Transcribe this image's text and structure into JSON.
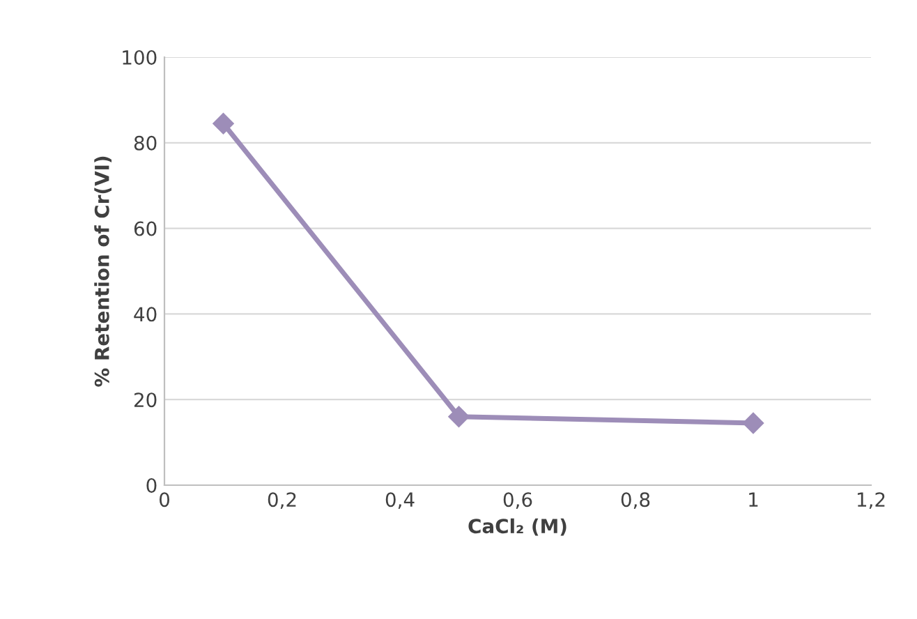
{
  "chart_data": {
    "type": "line",
    "xlabel": "CaCl₂ (M)",
    "ylabel": "% Retention of Cr(VI)",
    "x": [
      0.1,
      0.5,
      1
    ],
    "series": [
      {
        "color": "#9d8db8",
        "values": [
          84.5,
          16,
          14.5
        ]
      }
    ],
    "xlim": [
      0,
      1.2
    ],
    "xticks": [
      0,
      {
        "value": 0.2,
        "label": "0,2"
      },
      {
        "value": 0.4,
        "label": "0,4"
      },
      {
        "value": 0.6,
        "label": "0,6"
      },
      {
        "value": 0.8,
        "label": "0,8"
      },
      1,
      {
        "value": 1.2,
        "label": "1,2"
      }
    ],
    "ylim": [
      0,
      100
    ],
    "yticks": [
      0,
      20,
      40,
      60,
      80,
      100
    ],
    "grid": "y",
    "marker": "diamond",
    "line_style": "solid"
  }
}
